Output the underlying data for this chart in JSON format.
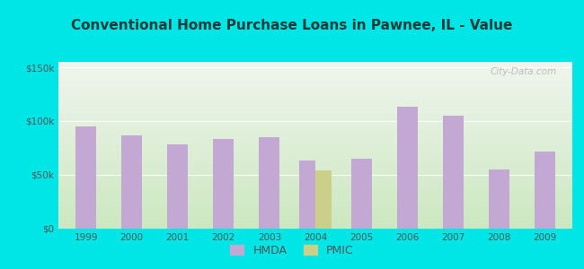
{
  "title": "Conventional Home Purchase Loans in Pawnee, IL - Value",
  "years": [
    1999,
    2000,
    2001,
    2002,
    2003,
    2004,
    2005,
    2006,
    2007,
    2008,
    2009
  ],
  "hmda_values": [
    95000,
    87000,
    78000,
    83000,
    85000,
    63000,
    65000,
    113000,
    105000,
    55000,
    72000
  ],
  "pmic_values": [
    0,
    0,
    0,
    0,
    0,
    54000,
    0,
    0,
    0,
    0,
    0
  ],
  "hmda_color": "#c4a8d4",
  "pmic_color": "#cccf8a",
  "background_outer": "#00e5e5",
  "background_inner_top": "#f0f5ee",
  "background_inner_bottom": "#cce8c0",
  "ylim": [
    0,
    155000
  ],
  "yticks": [
    0,
    50000,
    100000,
    150000
  ],
  "ytick_labels": [
    "$0",
    "$50k",
    "$100k",
    "$150k"
  ],
  "single_bar_width": 0.45,
  "pair_bar_width": 0.35,
  "watermark": "City-Data.com",
  "title_color": "#1a3a3a",
  "tick_color": "#555555",
  "grid_color": "#ffffff"
}
